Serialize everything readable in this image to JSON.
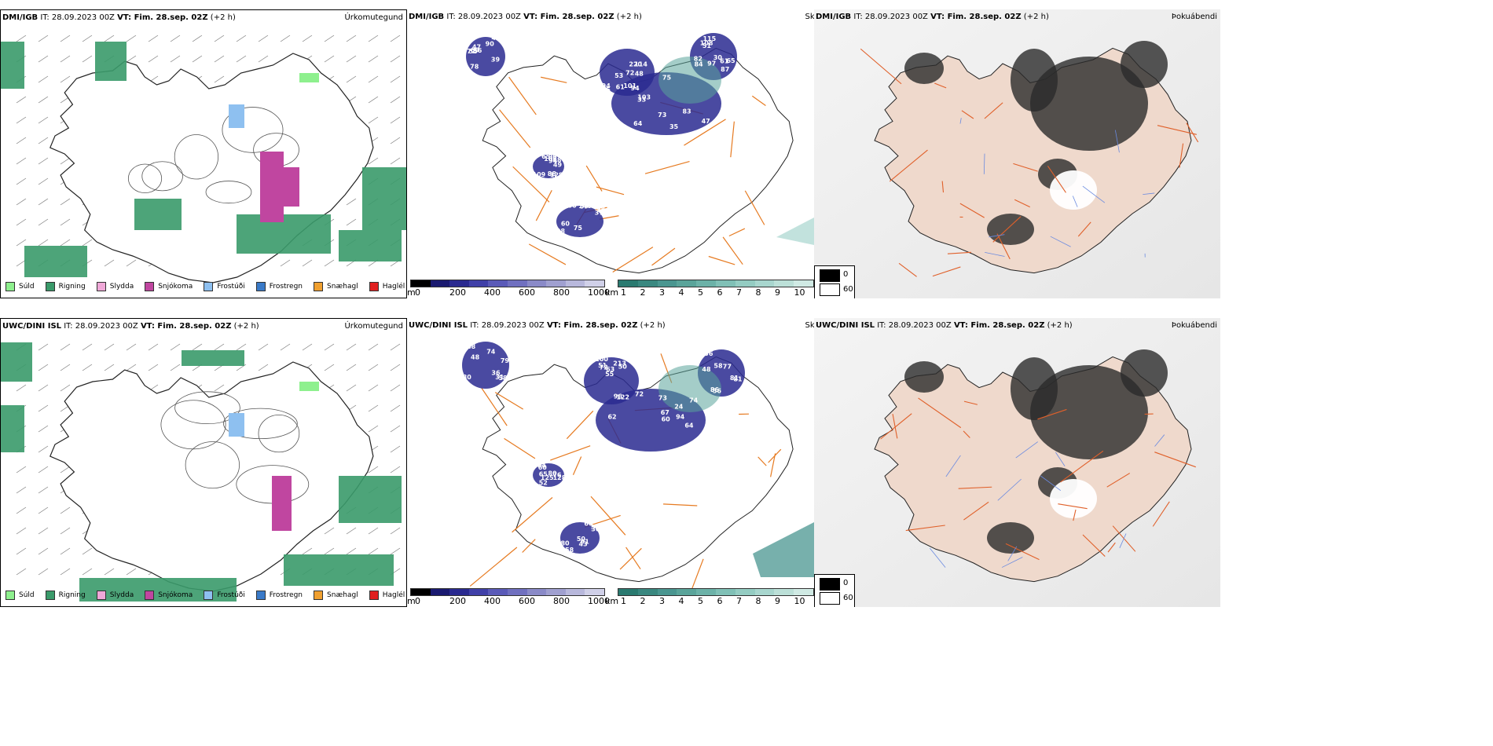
{
  "rows": [
    {
      "source": "DMI/IGB",
      "it_prefix": "IT:",
      "it_value": "28.09.2023 00Z",
      "vt_label": "VT: Fim. 28.sep. 02Z",
      "offset": "(+2 h)",
      "precip_title": "Úrkomutegund",
      "cloud_title": "Skyggni",
      "vis_title": "Þokuábendi",
      "numbers": [
        "73",
        "94",
        "97",
        "47",
        "100",
        "96",
        "35",
        "114",
        "30",
        "47",
        "37",
        "94",
        "64",
        "70",
        "84",
        "78",
        "59",
        "65",
        "61",
        "48",
        "87",
        "77",
        "71",
        "106",
        "83",
        "53",
        "82",
        "69",
        "75",
        "48",
        "47",
        "101",
        "65",
        "55",
        "98",
        "128",
        "103",
        "85",
        "61",
        "90",
        "60",
        "109",
        "75",
        "72",
        "51",
        "56",
        "140",
        "88",
        "33",
        "220",
        "108",
        "39",
        "28",
        "49",
        "94",
        "32",
        "115"
      ]
    },
    {
      "source": "UWC/DINI ISL",
      "it_prefix": "IT:",
      "it_value": "28.09.2023 00Z",
      "vt_label": "VT: Fim. 28.sep. 02Z",
      "offset": "(+2 h)",
      "precip_title": "Úrkomutegund",
      "cloud_title": "Skyggni",
      "vis_title": "Þokuábendi",
      "numbers": [
        "67",
        "51",
        "77",
        "88",
        "58",
        "64",
        "62",
        "96",
        "36",
        "31",
        "30",
        "76",
        "60",
        "55",
        "56",
        "58",
        "50",
        "65",
        "74",
        "63",
        "81",
        "80",
        "91",
        "125",
        "73",
        "72",
        "86",
        "79",
        "59",
        "128",
        "72",
        "122",
        "58",
        "48",
        "80",
        "60",
        "64",
        "100",
        "81",
        "74",
        "66",
        "52",
        "94",
        "50",
        "48",
        "36",
        "43",
        "80",
        "24",
        "213"
      ]
    }
  ],
  "precip_legend": [
    {
      "label": "Súld",
      "color": "#8ef08e"
    },
    {
      "label": "Rigning",
      "color": "#3a9a6a"
    },
    {
      "label": "Slydda",
      "color": "#f0a8d8"
    },
    {
      "label": "Snjókoma",
      "color": "#c046a0"
    },
    {
      "label": "Frostúði",
      "color": "#8ec0f0"
    },
    {
      "label": "Frostregn",
      "color": "#3a7ac8"
    },
    {
      "label": "Snæhagl",
      "color": "#f0a030"
    },
    {
      "label": "Haglél",
      "color": "#e02020"
    }
  ],
  "cloud_bar": {
    "unit_m": "m",
    "ticks_m": [
      "0",
      "200",
      "400",
      "600",
      "800",
      "1000"
    ],
    "colors_m": [
      "#000000",
      "#1a1a70",
      "#2a2a90",
      "#4040a8",
      "#5a5ab8",
      "#7070c0",
      "#8a8ac8",
      "#a0a0d0",
      "#b8b8dc",
      "#d0d0e8"
    ],
    "unit_km": "km",
    "ticks_km": [
      "1",
      "2",
      "3",
      "4",
      "5",
      "6",
      "7",
      "8",
      "9",
      "10"
    ],
    "colors_km": [
      "#2a7a70",
      "#3a8880",
      "#4a9690",
      "#5aa49a",
      "#6cb2a8",
      "#80c0b6",
      "#94ccc2",
      "#a8d6ce",
      "#bce0d8",
      "#d0eae4"
    ]
  },
  "vis_legend": {
    "labels": [
      "0",
      "60"
    ],
    "colors": [
      "#000000",
      "#ffffff"
    ]
  }
}
